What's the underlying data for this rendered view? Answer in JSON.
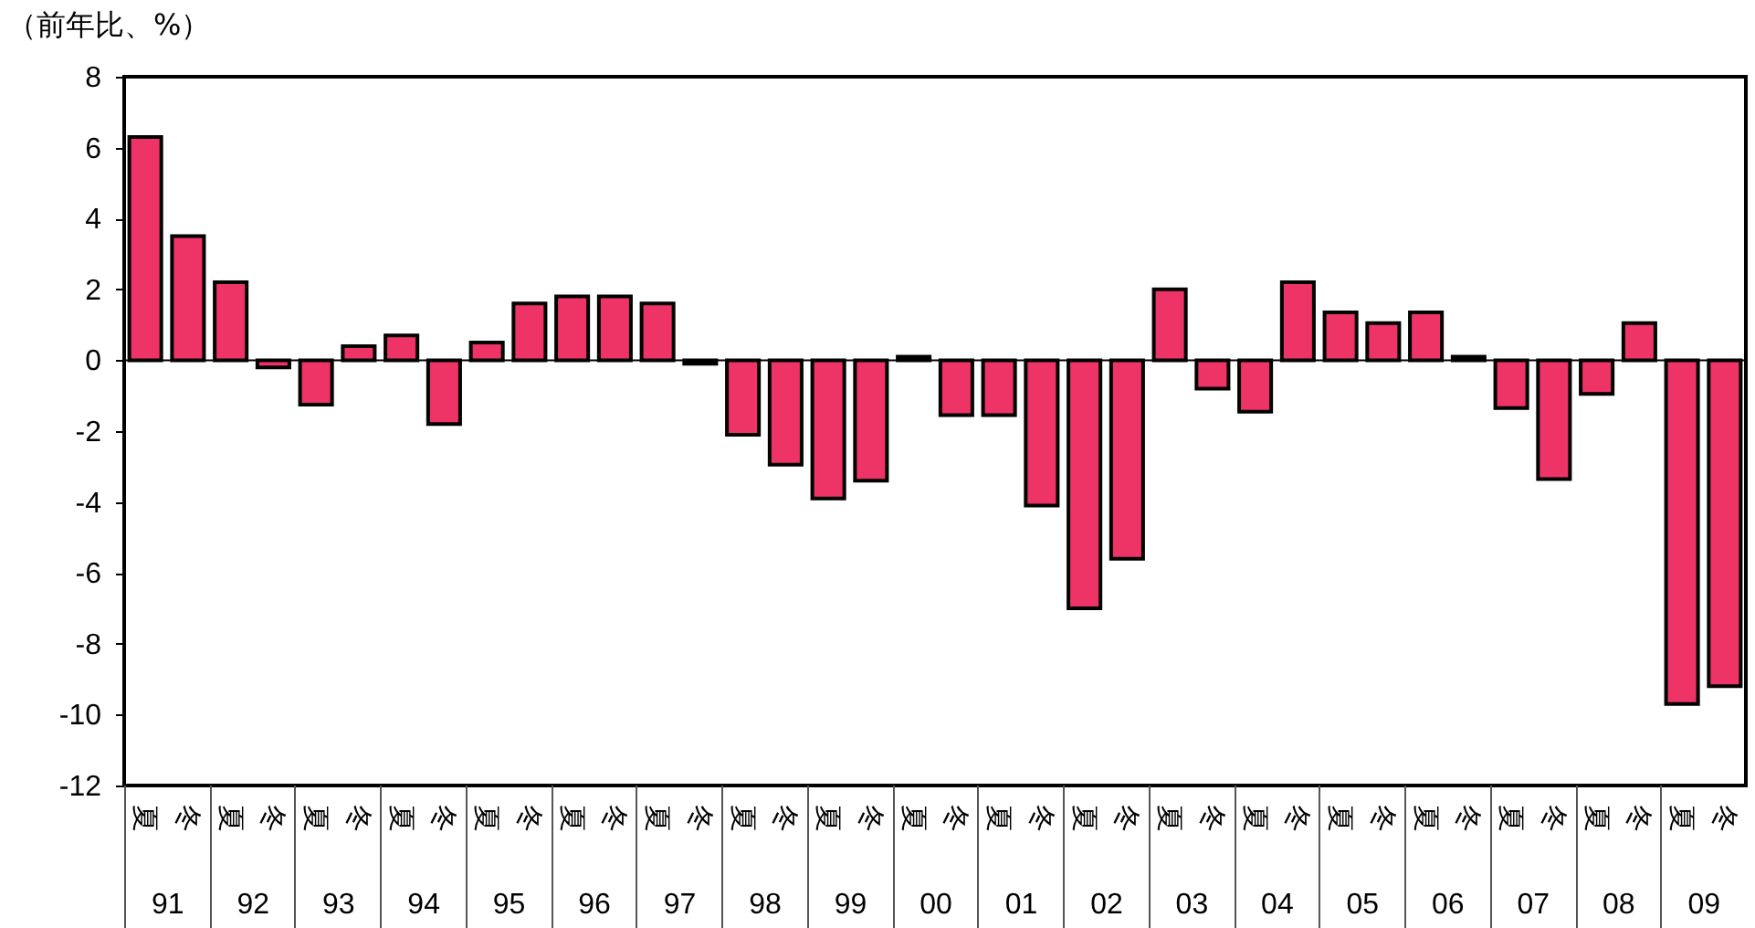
{
  "chart_data": {
    "type": "bar",
    "ylabel": "（前年比、%）",
    "categories": [
      "夏",
      "冬",
      "夏",
      "冬",
      "夏",
      "冬",
      "夏",
      "冬",
      "夏",
      "冬",
      "夏",
      "冬",
      "夏",
      "冬",
      "夏",
      "冬",
      "夏",
      "冬",
      "夏",
      "冬",
      "夏",
      "冬",
      "夏",
      "冬",
      "夏",
      "冬",
      "夏",
      "冬",
      "夏",
      "冬",
      "夏",
      "冬",
      "夏",
      "冬",
      "夏",
      "冬",
      "夏",
      "冬"
    ],
    "values": [
      6.3,
      3.5,
      2.2,
      -0.2,
      -1.25,
      0.4,
      0.7,
      -1.8,
      0.5,
      1.6,
      1.8,
      1.8,
      1.6,
      -0.1,
      -2.1,
      -2.95,
      -3.9,
      -3.4,
      0.1,
      -1.55,
      -1.55,
      -4.1,
      -7.0,
      -5.6,
      2.0,
      -0.8,
      -1.45,
      2.2,
      1.35,
      1.05,
      1.35,
      0.1,
      -1.35,
      -3.35,
      -0.95,
      1.05,
      -9.7,
      -9.2
    ],
    "color": "#ee3366",
    "ylim": [
      -12,
      8
    ],
    "yticks": [
      -12,
      -10,
      -8,
      -6,
      -4,
      -2,
      0,
      2,
      4,
      6,
      8
    ],
    "ref_lines": [
      {
        "axis": "y",
        "value": 0
      }
    ],
    "annotations": [
      "91",
      "92",
      "93",
      "94",
      "95",
      "96",
      "97",
      "98",
      "99",
      "00",
      "01",
      "02",
      "03",
      "04",
      "05",
      "06",
      "07",
      "08",
      "09"
    ],
    "grid": false
  }
}
